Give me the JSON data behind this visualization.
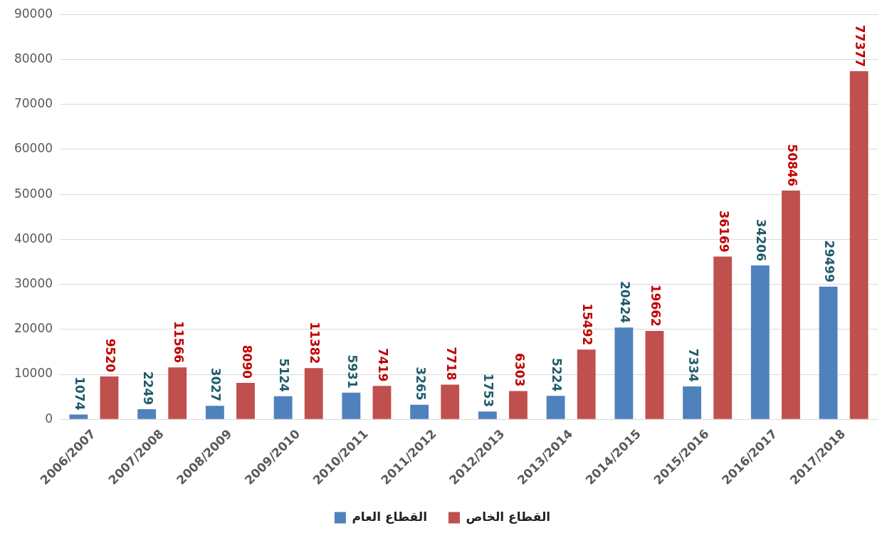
{
  "chart_data": {
    "type": "bar",
    "categories": [
      "2006/2007",
      "2007/2008",
      "2008/2009",
      "2009/2010",
      "2010/2011",
      "2011/2012",
      "2012/2013",
      "2013/2014",
      "2014/2015",
      "2015/2016",
      "2016/2017",
      "2017/2018"
    ],
    "series": [
      {
        "name": "القطاع العام",
        "color": "#4f81bd",
        "values": [
          1074,
          2249,
          3027,
          5124,
          5931,
          3265,
          1753,
          5224,
          20424,
          7334,
          34206,
          29499
        ]
      },
      {
        "name": "القطاع الخاص",
        "color": "#c0504d",
        "values": [
          9520,
          11566,
          8090,
          11382,
          7419,
          7718,
          6303,
          15492,
          19662,
          36169,
          50846,
          77377
        ]
      }
    ],
    "ylim": [
      0,
      90000
    ],
    "yticks": [
      0,
      10000,
      20000,
      30000,
      40000,
      50000,
      60000,
      70000,
      80000,
      90000
    ],
    "grid": "y",
    "legend": "bottom",
    "data_labels": true
  }
}
